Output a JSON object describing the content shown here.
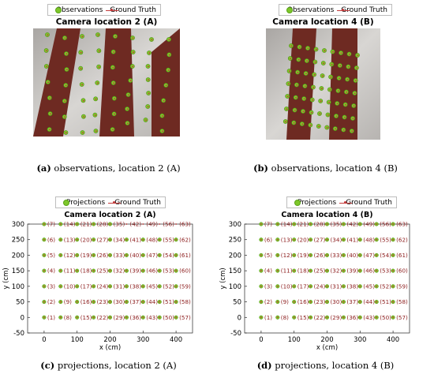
{
  "top_left": {
    "legend": {
      "obs": "Observations",
      "gt": "Ground Truth"
    },
    "title": "Camera location 2 (A)",
    "caption_label": "(a)",
    "caption_text": " observations, location 2 (A)"
  },
  "top_right": {
    "legend": {
      "obs": "Observations",
      "gt": "Ground Truth"
    },
    "title": "Camera location 4 (B)",
    "caption_label": "(b)",
    "caption_text": " observations, location 4 (B)"
  },
  "bottom_left": {
    "caption_label": "(c)",
    "caption_text": " projections, location 2 (A)"
  },
  "bottom_right": {
    "caption_label": "(d)",
    "caption_text": " projections, location 4 (B)"
  },
  "colors": {
    "observation": "#7ec72a",
    "ground_truth": "#c43a3a",
    "floor_light": "#c9c6c3",
    "floor_tile": "#6e2a22"
  },
  "chart_data": [
    {
      "type": "scatter",
      "title": "Camera location 2 (A)",
      "legend": [
        "Projections",
        "Ground Truth"
      ],
      "legend_placement": "top",
      "xlabel": "x (cm)",
      "ylabel": "y (cm)",
      "xlim": [
        -50,
        450
      ],
      "ylim": [
        -50,
        300
      ],
      "xticks": [
        0,
        100,
        200,
        300,
        400
      ],
      "yticks": [
        -50,
        0,
        50,
        100,
        150,
        200,
        250,
        300
      ],
      "grid": false,
      "columns_x": [
        0,
        50,
        100,
        150,
        200,
        250,
        300,
        350,
        400
      ],
      "rows_y": [
        0,
        50,
        100,
        150,
        200,
        250,
        300
      ],
      "hidden_projection_ids": [
        42,
        49,
        56,
        63
      ],
      "series": [
        {
          "name": "Projections",
          "points": "all labelled ground-truth points except those listed as hidden"
        },
        {
          "name": "Ground Truth",
          "labels": "(1)-(63), numbered up each column from bottom to top"
        }
      ]
    },
    {
      "type": "scatter",
      "title": "Camera location 4 (B)",
      "legend": [
        "Projections",
        "Ground Truth"
      ],
      "legend_placement": "top",
      "xlabel": "x (cm)",
      "ylabel": "y (cm)",
      "xlim": [
        -50,
        450
      ],
      "ylim": [
        -50,
        300
      ],
      "xticks": [
        0,
        100,
        200,
        300,
        400
      ],
      "yticks": [
        -50,
        0,
        50,
        100,
        150,
        200,
        250,
        300
      ],
      "grid": false,
      "columns_x": [
        0,
        50,
        100,
        150,
        200,
        250,
        300,
        350,
        400
      ],
      "rows_y": [
        0,
        50,
        100,
        150,
        200,
        250,
        300
      ],
      "hidden_projection_ids": [],
      "series": [
        {
          "name": "Projections",
          "points": "all ground-truth points"
        },
        {
          "name": "Ground Truth",
          "labels": "(1)-(63), numbered up each column from bottom to top"
        }
      ]
    }
  ]
}
